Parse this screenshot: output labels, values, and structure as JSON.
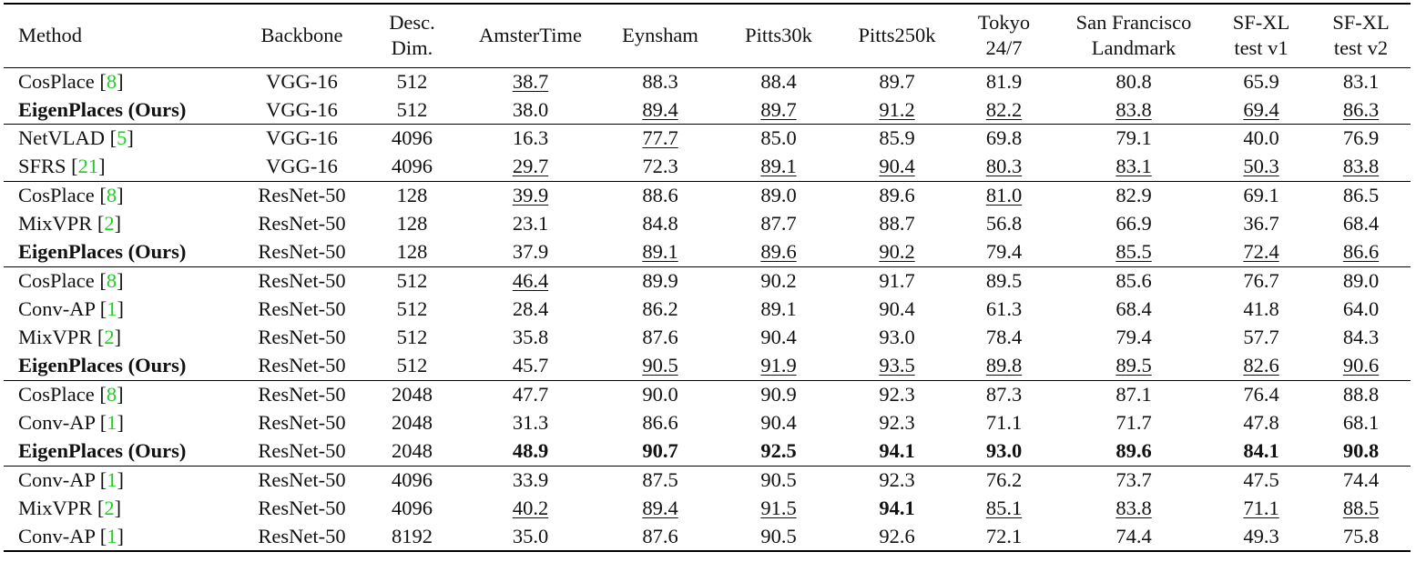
{
  "table": {
    "columns": [
      [
        "Method"
      ],
      [
        "Backbone"
      ],
      [
        "Desc.",
        "Dim."
      ],
      [
        "AmsterTime"
      ],
      [
        "Eynsham"
      ],
      [
        "Pitts30k"
      ],
      [
        "Pitts250k"
      ],
      [
        "Tokyo",
        "24/7"
      ],
      [
        "San Francisco",
        "Landmark"
      ],
      [
        "SF-XL",
        "test v1"
      ],
      [
        "SF-XL",
        "test v2"
      ]
    ],
    "groups": [
      {
        "rows": [
          {
            "method": [
              "CosPlace [",
              "8",
              "]"
            ],
            "backbone": "VGG-16",
            "dim": "512",
            "scores": [
              "38.7",
              "88.3",
              "88.4",
              "89.7",
              "81.9",
              "80.8",
              "65.9",
              "83.1"
            ],
            "underlined": [
              0
            ],
            "bold": []
          },
          {
            "method": [
              "EigenPlaces (Ours)"
            ],
            "bold_method": true,
            "backbone": "VGG-16",
            "dim": "512",
            "scores": [
              "38.0",
              "89.4",
              "89.7",
              "91.2",
              "82.2",
              "83.8",
              "69.4",
              "86.3"
            ],
            "underlined": [
              1,
              2,
              3,
              4,
              5,
              6,
              7
            ],
            "bold": []
          }
        ]
      },
      {
        "rows": [
          {
            "method": [
              "NetVLAD [",
              "5",
              "]"
            ],
            "backbone": "VGG-16",
            "dim": "4096",
            "scores": [
              "16.3",
              "77.7",
              "85.0",
              "85.9",
              "69.8",
              "79.1",
              "40.0",
              "76.9"
            ],
            "underlined": [
              1
            ],
            "bold": []
          },
          {
            "method": [
              "SFRS [",
              "21",
              "]"
            ],
            "backbone": "VGG-16",
            "dim": "4096",
            "scores": [
              "29.7",
              "72.3",
              "89.1",
              "90.4",
              "80.3",
              "83.1",
              "50.3",
              "83.8"
            ],
            "underlined": [
              0,
              2,
              3,
              4,
              5,
              6,
              7
            ],
            "bold": []
          }
        ]
      },
      {
        "rows": [
          {
            "method": [
              "CosPlace [",
              "8",
              "]"
            ],
            "backbone": "ResNet-50",
            "dim": "128",
            "scores": [
              "39.9",
              "88.6",
              "89.0",
              "89.6",
              "81.0",
              "82.9",
              "69.1",
              "86.5"
            ],
            "underlined": [
              0,
              4
            ],
            "bold": []
          },
          {
            "method": [
              "MixVPR [",
              "2",
              "]"
            ],
            "backbone": "ResNet-50",
            "dim": "128",
            "scores": [
              "23.1",
              "84.8",
              "87.7",
              "88.7",
              "56.8",
              "66.9",
              "36.7",
              "68.4"
            ],
            "underlined": [],
            "bold": []
          },
          {
            "method": [
              "EigenPlaces (Ours)"
            ],
            "bold_method": true,
            "backbone": "ResNet-50",
            "dim": "128",
            "scores": [
              "37.9",
              "89.1",
              "89.6",
              "90.2",
              "79.4",
              "85.5",
              "72.4",
              "86.6"
            ],
            "underlined": [
              1,
              2,
              3,
              5,
              6,
              7
            ],
            "bold": []
          }
        ]
      },
      {
        "rows": [
          {
            "method": [
              "CosPlace [",
              "8",
              "]"
            ],
            "backbone": "ResNet-50",
            "dim": "512",
            "scores": [
              "46.4",
              "89.9",
              "90.2",
              "91.7",
              "89.5",
              "85.6",
              "76.7",
              "89.0"
            ],
            "underlined": [
              0
            ],
            "bold": []
          },
          {
            "method": [
              "Conv-AP [",
              "1",
              "]"
            ],
            "backbone": "ResNet-50",
            "dim": "512",
            "scores": [
              "28.4",
              "86.2",
              "89.1",
              "90.4",
              "61.3",
              "68.4",
              "41.8",
              "64.0"
            ],
            "underlined": [],
            "bold": []
          },
          {
            "method": [
              "MixVPR [",
              "2",
              "]"
            ],
            "backbone": "ResNet-50",
            "dim": "512",
            "scores": [
              "35.8",
              "87.6",
              "90.4",
              "93.0",
              "78.4",
              "79.4",
              "57.7",
              "84.3"
            ],
            "underlined": [],
            "bold": []
          },
          {
            "method": [
              "EigenPlaces (Ours)"
            ],
            "bold_method": true,
            "backbone": "ResNet-50",
            "dim": "512",
            "scores": [
              "45.7",
              "90.5",
              "91.9",
              "93.5",
              "89.8",
              "89.5",
              "82.6",
              "90.6"
            ],
            "underlined": [
              1,
              2,
              3,
              4,
              5,
              6,
              7
            ],
            "bold": []
          }
        ]
      },
      {
        "rows": [
          {
            "method": [
              "CosPlace [",
              "8",
              "]"
            ],
            "backbone": "ResNet-50",
            "dim": "2048",
            "scores": [
              "47.7",
              "90.0",
              "90.9",
              "92.3",
              "87.3",
              "87.1",
              "76.4",
              "88.8"
            ],
            "underlined": [],
            "bold": []
          },
          {
            "method": [
              "Conv-AP [",
              "1",
              "]"
            ],
            "backbone": "ResNet-50",
            "dim": "2048",
            "scores": [
              "31.3",
              "86.6",
              "90.4",
              "92.3",
              "71.1",
              "71.7",
              "47.8",
              "68.1"
            ],
            "underlined": [],
            "bold": []
          },
          {
            "method": [
              "EigenPlaces (Ours)"
            ],
            "bold_method": true,
            "backbone": "ResNet-50",
            "dim": "2048",
            "scores": [
              "48.9",
              "90.7",
              "92.5",
              "94.1",
              "93.0",
              "89.6",
              "84.1",
              "90.8"
            ],
            "underlined": [],
            "bold": [
              0,
              1,
              2,
              3,
              4,
              5,
              6,
              7
            ]
          }
        ]
      },
      {
        "rows": [
          {
            "method": [
              "Conv-AP [",
              "1",
              "]"
            ],
            "backbone": "ResNet-50",
            "dim": "4096",
            "scores": [
              "33.9",
              "87.5",
              "90.5",
              "92.3",
              "76.2",
              "73.7",
              "47.5",
              "74.4"
            ],
            "underlined": [],
            "bold": []
          },
          {
            "method": [
              "MixVPR [",
              "2",
              "]"
            ],
            "backbone": "ResNet-50",
            "dim": "4096",
            "scores": [
              "40.2",
              "89.4",
              "91.5",
              "94.1",
              "85.1",
              "83.8",
              "71.1",
              "88.5"
            ],
            "underlined": [
              0,
              1,
              2,
              4,
              5,
              6,
              7
            ],
            "bold": [
              3
            ]
          },
          {
            "method": [
              "Conv-AP [",
              "1",
              "]"
            ],
            "backbone": "ResNet-50",
            "dim": "8192",
            "scores": [
              "35.0",
              "87.6",
              "90.5",
              "92.6",
              "72.1",
              "74.4",
              "49.3",
              "75.8"
            ],
            "underlined": [],
            "bold": []
          }
        ]
      }
    ]
  }
}
